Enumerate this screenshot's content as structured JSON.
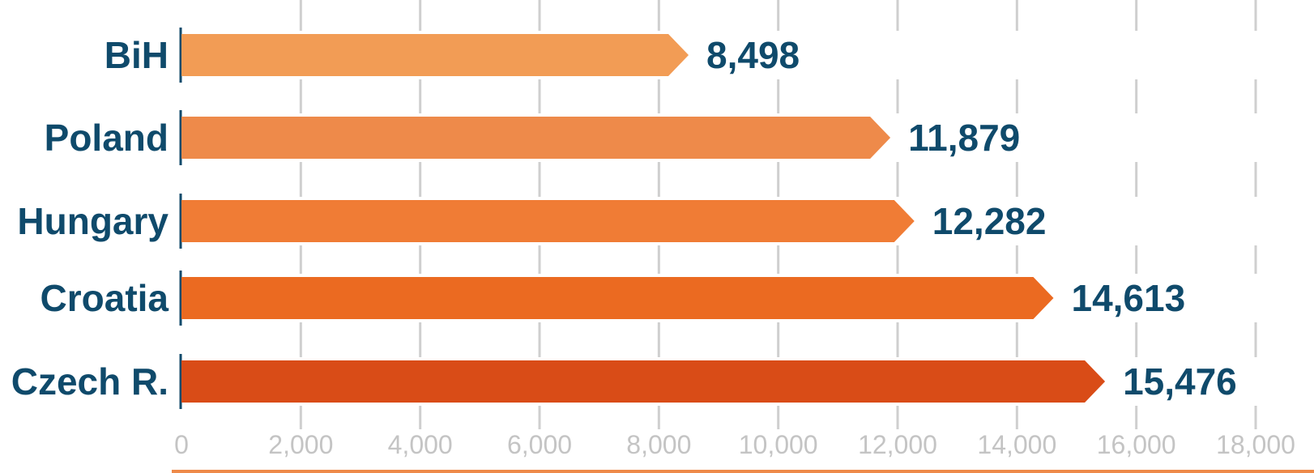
{
  "chart_data": {
    "type": "bar",
    "orientation": "horizontal",
    "categories": [
      "BiH",
      "Poland",
      "Hungary",
      "Croatia",
      "Czech R."
    ],
    "values": [
      8498,
      11879,
      12282,
      14613,
      15476
    ],
    "value_labels": [
      "8,498",
      "11,879",
      "12,282",
      "14,613",
      "15,476"
    ],
    "xlim": [
      0,
      18000
    ],
    "xticks": [
      0,
      2000,
      4000,
      6000,
      8000,
      10000,
      12000,
      14000,
      16000,
      18000
    ],
    "xtick_labels": [
      "0",
      "2,000",
      "4,000",
      "6,000",
      "8,000",
      "10,000",
      "12,000",
      "14,000",
      "16,000",
      "18,000"
    ],
    "bar_colors": [
      "#f29c55",
      "#ee8a4a",
      "#f07c35",
      "#eb6a21",
      "#d94c17"
    ],
    "grid": "vertical dashed",
    "title": "",
    "xlabel": "",
    "ylabel": ""
  },
  "colors": {
    "label_text": "#0f4a6b",
    "tick_text": "#c4c4c4",
    "gridline": "#cfcfcf",
    "bottom_rule": "#ee8a4a"
  }
}
